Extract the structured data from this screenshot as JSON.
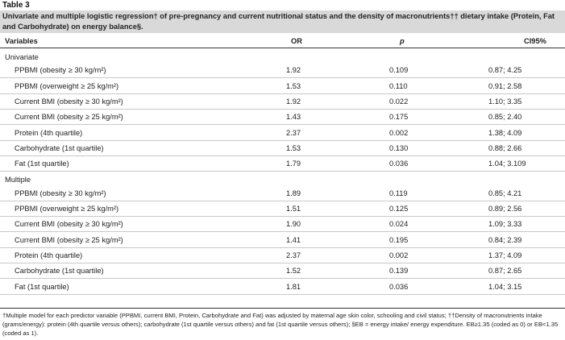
{
  "table_label": "Table 3",
  "caption": "Univariate and multiple logistic regression† of pre-pregnancy and current nutritional status and the density of macronutrients†† dietary intake (Protein, Fat and Carbohydrate) on energy balance§.",
  "headers": {
    "variables": "Variables",
    "or": "OR",
    "p": "p",
    "ci": "CI95%"
  },
  "sections": [
    {
      "title": "Univariate",
      "rows": [
        {
          "var": "PPBMI (obesity ≥ 30 kg/m²)",
          "or": "1.92",
          "p": "0.109",
          "ci": "0.87; 4.25"
        },
        {
          "var": "PPBMI (overweight ≥ 25 kg/m²)",
          "or": "1.53",
          "p": "0.110",
          "ci": "0.91; 2.58"
        },
        {
          "var": "Current BMI (obesity ≥ 30 kg/m²)",
          "or": "1.92",
          "p": "0.022",
          "ci": "1.10; 3.35"
        },
        {
          "var": "Current BMI (obesity ≥ 25 kg/m²)",
          "or": "1.43",
          "p": "0.175",
          "ci": "0.85; 2.40"
        },
        {
          "var": "Protein (4th quartile)",
          "or": "2.37",
          "p": "0.002",
          "ci": "1.38; 4.09"
        },
        {
          "var": "Carbohydrate (1st quartile)",
          "or": "1.53",
          "p": "0.130",
          "ci": "0.88; 2.66"
        },
        {
          "var": "Fat (1st quartile)",
          "or": "1.79",
          "p": "0.036",
          "ci": "1.04; 3.109"
        }
      ]
    },
    {
      "title": "Multiple",
      "rows": [
        {
          "var": "PPBMI (obesity ≥ 30 kg/m²)",
          "or": "1.89",
          "p": "0.119",
          "ci": "0.85; 4.21"
        },
        {
          "var": "PPBMI (overweight ≥ 25 kg/m²)",
          "or": "1.51",
          "p": "0.125",
          "ci": "0.89; 2.56"
        },
        {
          "var": "Current BMI (obesity ≥ 30 kg/m²)",
          "or": "1.90",
          "p": "0.024",
          "ci": "1.09; 3.33"
        },
        {
          "var": "Current BMI (obesity ≥ 25 kg/m²)",
          "or": "1.41",
          "p": "0.195",
          "ci": "0.84; 2.39"
        },
        {
          "var": "Protein (4th quartile)",
          "or": "2.37",
          "p": "0.002",
          "ci": "1.37; 4.09"
        },
        {
          "var": "Carbohydrate (1st quartile)",
          "or": "1.52",
          "p": "0.139",
          "ci": "0.87; 2.65"
        },
        {
          "var": "Fat (1st quartile)",
          "or": "1.81",
          "p": "0.036",
          "ci": "1.04; 3.15"
        }
      ]
    }
  ],
  "footnote": "†Multiple model for each predictor variable (PPBMI, current BMI, Protein, Carbohydrate and Fat) was adjusted by maternal age skin color, schooling and civil status; ††Density of macronutrients intake (grams/energy): protein (4th quartile versus others); carbohydrate (1st quartile versus others) and fat (1st quartile versus others); §EB = energy intake/ energy expenditure. EB≥1.35 (coded as 0) or EB<1.35 (coded as 1)."
}
